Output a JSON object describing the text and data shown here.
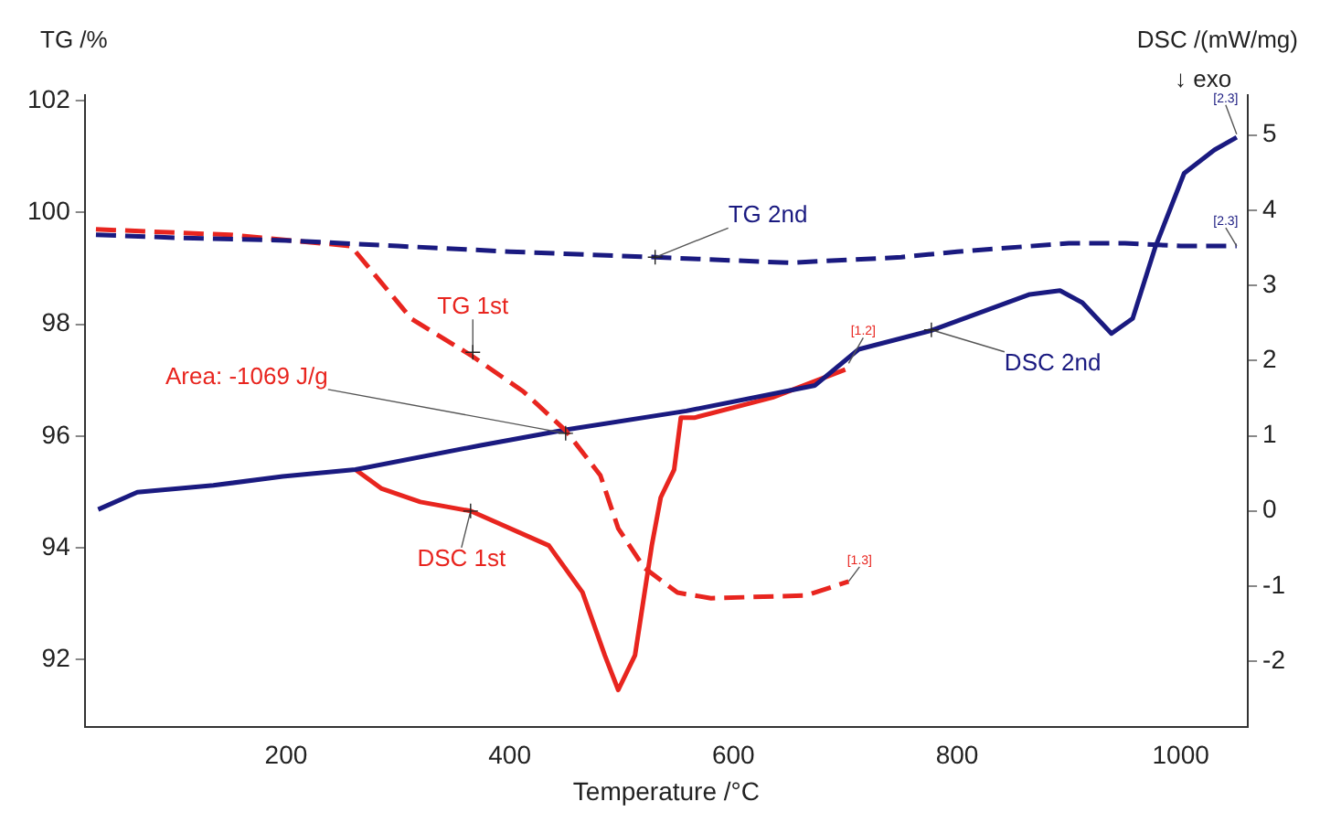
{
  "chart_data": {
    "type": "line",
    "xlabel": "Temperature /°C",
    "ylabel": "TG /%",
    "y2label": "DSC /(mW/mg)",
    "legend": false,
    "grid": false,
    "marker": "none",
    "xlim": [
      20,
      1060
    ],
    "xticks": [
      200,
      400,
      600,
      800,
      1000
    ],
    "ylim": [
      90.8,
      102.1
    ],
    "yticks": [
      92,
      94,
      96,
      98,
      100,
      102
    ],
    "y2lim": [
      -2.87,
      5.53
    ],
    "y2ticks": [
      -2,
      -1,
      0,
      1,
      2,
      3,
      4,
      5
    ],
    "series": [
      {
        "color": "#1a1a80",
        "line_style": "dashed",
        "axis": "y",
        "x": [
          30,
          100,
          200,
          300,
          400,
          530,
          650,
          750,
          800,
          900,
          950,
          1000,
          1050
        ],
        "values": [
          99.6,
          99.55,
          99.5,
          99.4,
          99.3,
          99.2,
          99.1,
          99.2,
          99.3,
          99.45,
          99.45,
          99.4,
          99.4
        ]
      },
      {
        "color": "#e8251f",
        "line_style": "dashed",
        "axis": "y",
        "x": [
          30,
          150,
          258,
          312,
          365,
          412,
          450,
          481,
          497,
          520,
          550,
          580,
          665,
          703
        ],
        "values": [
          99.7,
          99.6,
          99.4,
          98.1,
          97.45,
          96.8,
          96.1,
          95.3,
          94.35,
          93.65,
          93.2,
          93.1,
          93.15,
          93.4
        ]
      },
      {
        "color": "#1a1a80",
        "line_style": "solid",
        "axis": "y2",
        "x": [
          32,
          67,
          135,
          197,
          262,
          373,
          450,
          558,
          673,
          712,
          777,
          865,
          892,
          912,
          938,
          957,
          977,
          1003,
          1030,
          1050
        ],
        "values": [
          0.02,
          0.25,
          0.34,
          0.46,
          0.55,
          0.87,
          1.08,
          1.33,
          1.67,
          2.15,
          2.4,
          2.88,
          2.93,
          2.77,
          2.36,
          2.56,
          3.5,
          4.49,
          4.8,
          4.97
        ]
      },
      {
        "color": "#e8251f",
        "line_style": "solid",
        "axis": "y2",
        "x": [
          262,
          285,
          320,
          365,
          435,
          465,
          485,
          497,
          512,
          527,
          535,
          547,
          553,
          565,
          635,
          700
        ],
        "values": [
          0.55,
          0.3,
          0.12,
          0.0,
          -0.46,
          -1.08,
          -1.92,
          -2.38,
          -1.92,
          -0.46,
          0.18,
          0.55,
          1.24,
          1.24,
          1.51,
          1.88
        ]
      }
    ],
    "annotations": [
      {
        "text": "TG 2nd",
        "x": 530,
        "y": 99.2
      },
      {
        "text": "TG 1st",
        "x": 367,
        "y": 97.5
      },
      {
        "text": "Area: -1069 J/g",
        "x": 450,
        "y": 96.05
      },
      {
        "text": "DSC 1st",
        "x": 365,
        "y": 94.66
      },
      {
        "text": "DSC 2nd",
        "x": 777,
        "y": 97.9
      },
      {
        "text": "[2.3]",
        "x": 1050,
        "y": 101.4
      },
      {
        "text": "[2.3]",
        "x": 1050,
        "y": 99.4
      },
      {
        "text": "[1.2]",
        "x": 703,
        "y": 97.3
      },
      {
        "text": "[1.3]",
        "x": 703,
        "y": 93.4
      },
      "↓ exo"
    ]
  }
}
